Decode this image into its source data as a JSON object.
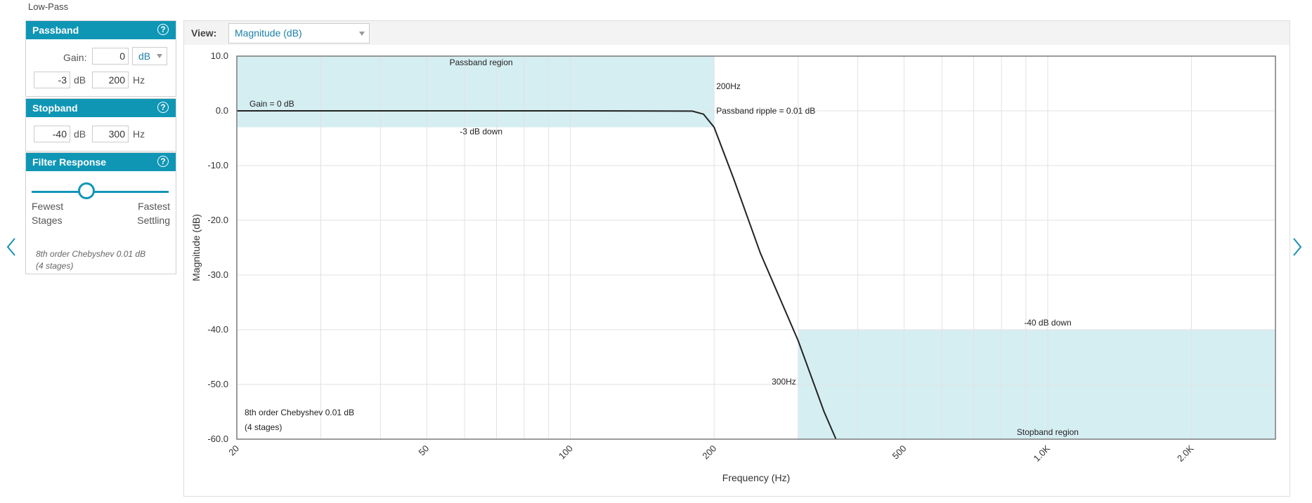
{
  "page_title": "Low-Pass",
  "passband": {
    "title": "Passband",
    "gain_label": "Gain:",
    "gain_value": "0",
    "gain_unit": "dB",
    "atten_value": "-3",
    "atten_unit": "dB",
    "freq_value": "200",
    "freq_unit": "Hz"
  },
  "stopband": {
    "title": "Stopband",
    "atten_value": "-40",
    "atten_unit": "dB",
    "freq_value": "300",
    "freq_unit": "Hz"
  },
  "filter_response": {
    "title": "Filter Response",
    "left_label_1": "Fewest",
    "left_label_2": "Stages",
    "right_label_1": "Fastest",
    "right_label_2": "Settling",
    "slider_value": 0.4,
    "summary_1": "8th order Chebyshev 0.01 dB",
    "summary_2": "(4 stages)"
  },
  "view": {
    "label": "View:",
    "selected": "Magnitude (dB)"
  },
  "chart_data": {
    "type": "line",
    "xlabel": "Frequency (Hz)",
    "ylabel": "Magnitude (dB)",
    "x_scale": "log",
    "xlim": [
      20,
      3000
    ],
    "ylim": [
      -60,
      10
    ],
    "x_ticks": [
      20,
      50,
      100,
      200,
      500,
      1000,
      2000
    ],
    "x_tick_labels": [
      "20",
      "50",
      "100",
      "200",
      "500",
      "1.0K",
      "2.0K"
    ],
    "y_ticks": [
      10,
      0,
      -10,
      -20,
      -30,
      -40,
      -50,
      -60
    ],
    "y_tick_labels": [
      "10.0",
      "0.0",
      "-10.0",
      "-20.0",
      "-30.0",
      "-40.0",
      "-50.0",
      "-60.0"
    ],
    "grid": true,
    "series": [
      {
        "x": [
          20,
          100,
          180,
          190,
          200,
          220,
          250,
          300,
          340,
          360
        ],
        "y": [
          0,
          0,
          -0.05,
          -0.6,
          -3,
          -12.5,
          -26,
          -42,
          -55,
          -60
        ]
      }
    ],
    "regions": [
      {
        "label": "Passband region",
        "x": [
          20,
          200
        ],
        "y": [
          -3,
          10
        ]
      },
      {
        "label": "Stopband region",
        "x": [
          300,
          3000
        ],
        "y": [
          -60,
          -40
        ]
      }
    ],
    "annotations": {
      "gain": "Gain = 0 dB",
      "passband_down": "-3 dB down",
      "pass_freq": "200Hz",
      "ripple": "Passband ripple = 0.01 dB",
      "stopband_down": "-40 dB down",
      "stop_freq": "300Hz",
      "order_1": "8th order Chebyshev 0.01 dB",
      "order_2": "(4 stages)"
    },
    "colors": {
      "region": "#d5eef2",
      "curve": "#222222",
      "grid": "#e2e2e2",
      "border": "#7a7a7a"
    }
  }
}
